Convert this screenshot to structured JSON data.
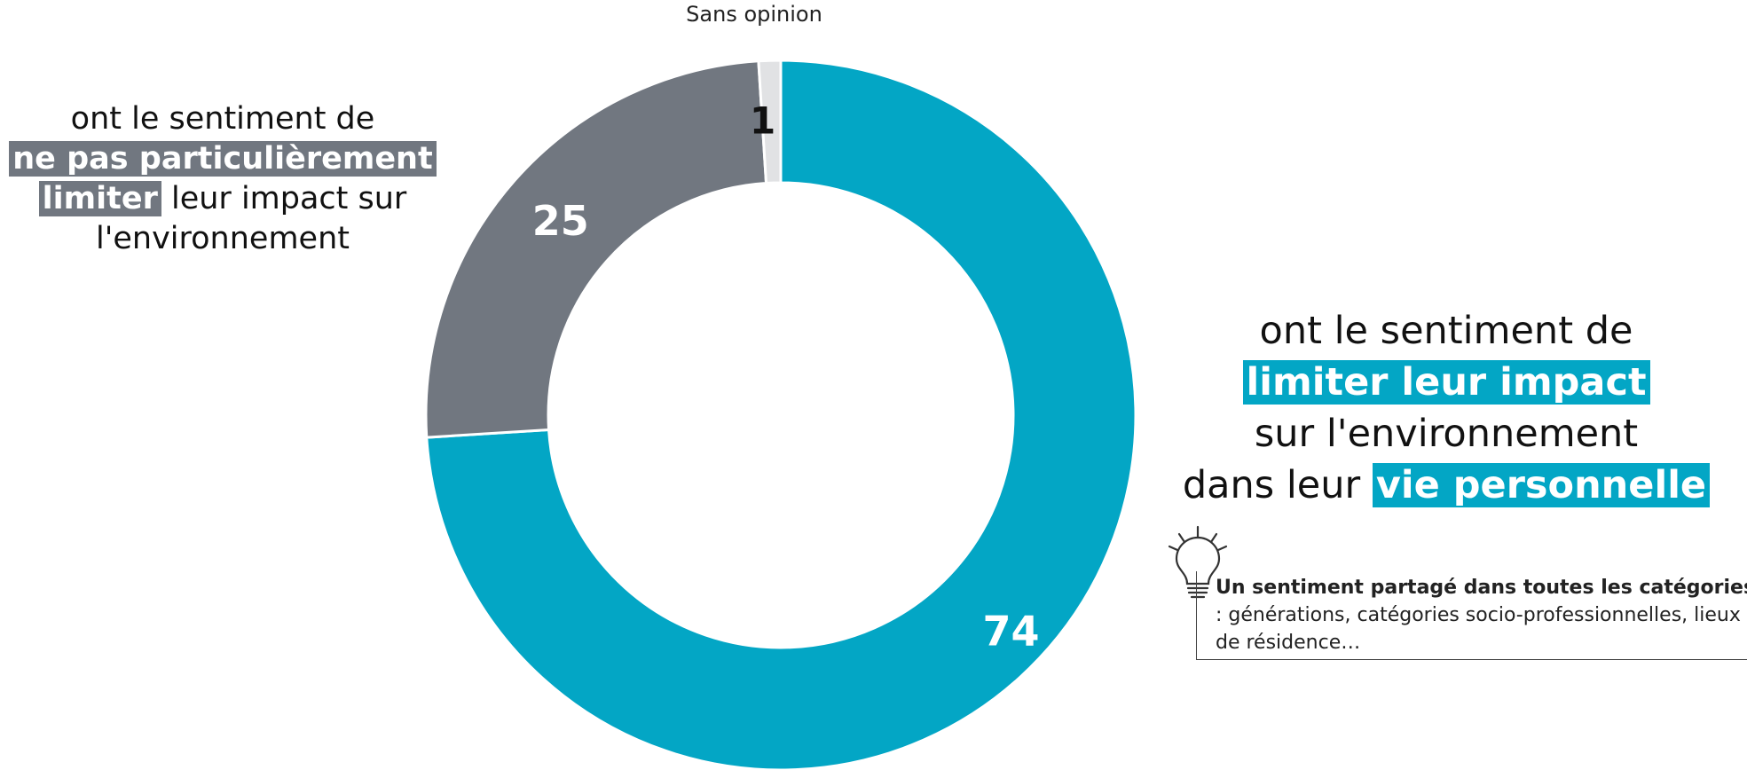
{
  "chart_data": {
    "type": "pie",
    "donut": true,
    "slices": [
      {
        "label": "vie personnelle",
        "value": 74,
        "color": "#03a6c5",
        "label_color": "#ffffff"
      },
      {
        "label": "ne pas particulièrement limiter",
        "value": 25,
        "color": "#717780",
        "label_color": "#ffffff"
      },
      {
        "label": "Sans opinion",
        "value": 1,
        "color": "#e1e2e4",
        "label_color": "#111111"
      }
    ],
    "start": "top",
    "direction": "clockwise",
    "legend": "none"
  },
  "labels": {
    "sans_opinion": "Sans opinion",
    "left": {
      "line1": "ont le sentiment de",
      "highlight1": "ne pas particulièrement",
      "highlight2": "limiter",
      "rest2": " leur impact sur",
      "line4": "l'environnement"
    },
    "right": {
      "line1": "ont le sentiment de",
      "highlight1": "limiter leur impact",
      "line3": "sur l'environnement",
      "line4_prefix": "dans leur ",
      "highlight2": "vie personnelle"
    }
  },
  "note": {
    "bold": "Un sentiment partagé dans toutes les catégories de populations",
    "text": " : générations, catégories socio-professionnelles, lieux de résidence…"
  },
  "icons": {
    "note_icon": "lightbulb-icon"
  }
}
